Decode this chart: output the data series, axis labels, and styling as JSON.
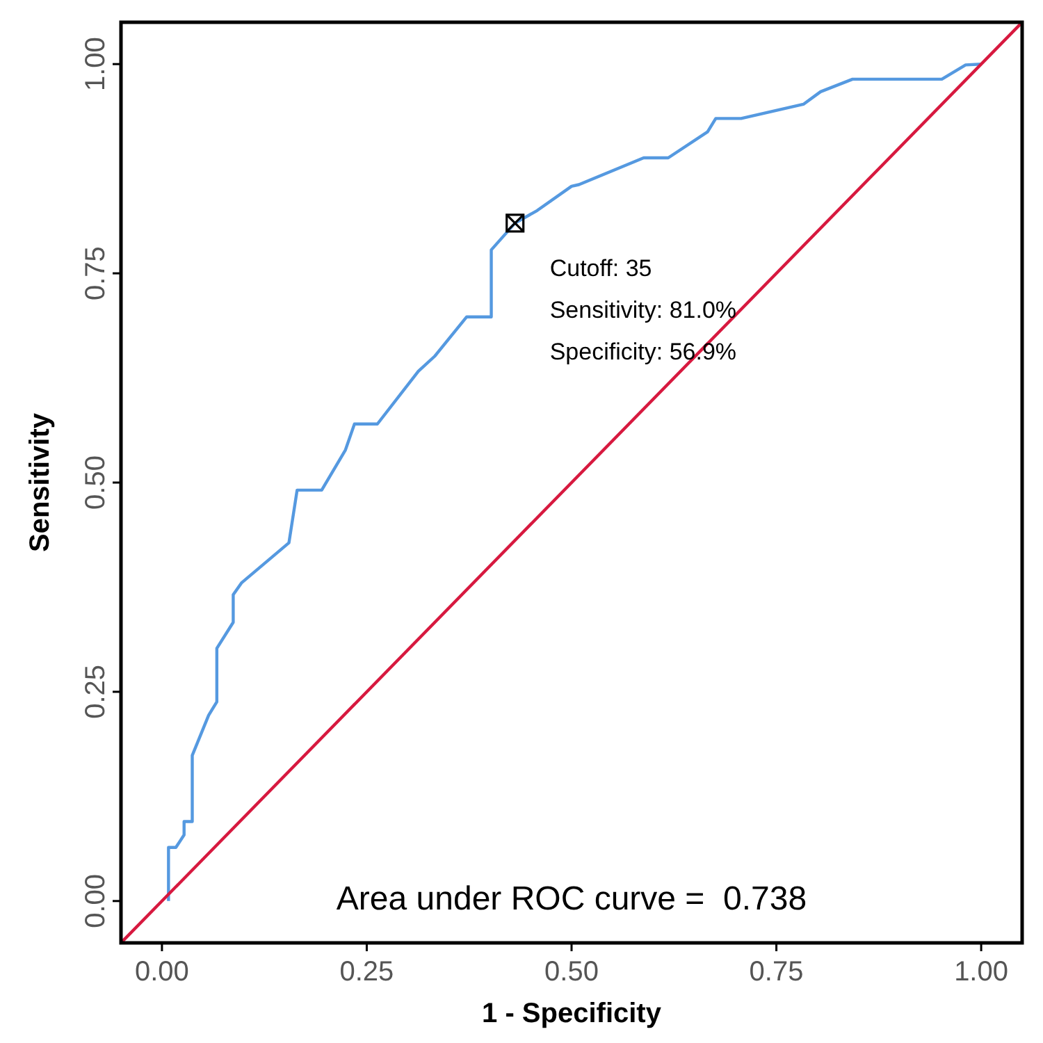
{
  "chart_data": {
    "type": "line",
    "xlabel": "1 - Specificity",
    "ylabel": "Sensitivity",
    "xlim": [
      -0.05,
      1.05
    ],
    "ylim": [
      -0.05,
      1.05
    ],
    "xticks": [
      {
        "value": 0,
        "label": "0.00"
      },
      {
        "value": 0.25,
        "label": "0.25"
      },
      {
        "value": 0.5,
        "label": "0.50"
      },
      {
        "value": 0.75,
        "label": "0.75"
      },
      {
        "value": 1,
        "label": "1.00"
      }
    ],
    "yticks": [
      {
        "value": 0,
        "label": "0.00"
      },
      {
        "value": 0.25,
        "label": "0.25"
      },
      {
        "value": 0.5,
        "label": "0.50"
      },
      {
        "value": 0.75,
        "label": "0.75"
      },
      {
        "value": 1,
        "label": "1.00"
      }
    ],
    "grid": false,
    "series": [
      {
        "color": "#5599e0",
        "x": [
          0.008,
          0.008,
          0.017,
          0.027,
          0.027,
          0.037,
          0.037,
          0.057,
          0.067,
          0.067,
          0.087,
          0.087,
          0.097,
          0.155,
          0.165,
          0.195,
          0.224,
          0.235,
          0.263,
          0.313,
          0.333,
          0.372,
          0.402,
          0.402,
          0.431,
          0.458,
          0.5,
          0.509,
          0.588,
          0.618,
          0.666,
          0.676,
          0.707,
          0.783,
          0.804,
          0.843,
          0.952,
          0.981,
          1.0
        ],
        "values": [
          0,
          0.064,
          0.064,
          0.079,
          0.095,
          0.095,
          0.174,
          0.222,
          0.238,
          0.302,
          0.333,
          0.366,
          0.38,
          0.428,
          0.491,
          0.491,
          0.539,
          0.57,
          0.57,
          0.633,
          0.651,
          0.698,
          0.698,
          0.778,
          0.81,
          0.825,
          0.854,
          0.856,
          0.888,
          0.888,
          0.919,
          0.935,
          0.935,
          0.952,
          0.967,
          0.982,
          0.982,
          0.999,
          1.0
        ]
      },
      {
        "color": "#d7193f",
        "x": [
          -0.05,
          1.05
        ],
        "values": [
          -0.05,
          1.05
        ]
      },
      {
        "type": "scatter",
        "color": "#000000",
        "marker": "square",
        "x": [
          0.431
        ],
        "values": [
          0.81
        ]
      }
    ],
    "annotations": [
      "Cutoff: 35",
      "Sensitivity: 81.0%",
      "Specificity: 56.9%",
      "Area under ROC curve =  0.738"
    ]
  }
}
